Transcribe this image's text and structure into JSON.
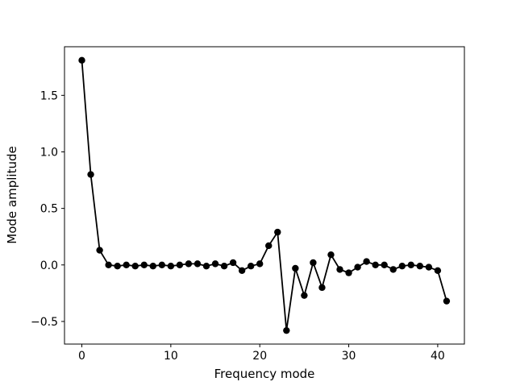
{
  "chart_data": {
    "type": "line",
    "title": "",
    "xlabel": "Frequency mode",
    "ylabel": "Mode amplitude",
    "xlim": [
      -1.95,
      43.0
    ],
    "ylim": [
      -0.7,
      1.93
    ],
    "xticks": [
      0,
      10,
      20,
      30,
      40
    ],
    "xtick_labels": [
      "0",
      "10",
      "20",
      "30",
      "40"
    ],
    "yticks": [
      -0.5,
      0.0,
      0.5,
      1.0,
      1.5
    ],
    "ytick_labels": [
      "−0.5",
      "0.0",
      "0.5",
      "1.0",
      "1.5"
    ],
    "grid": false,
    "legend": "none",
    "series": [
      {
        "color": "#000000",
        "marker": "circle",
        "x": [
          0,
          1,
          2,
          3,
          4,
          5,
          6,
          7,
          8,
          9,
          10,
          11,
          12,
          13,
          14,
          15,
          16,
          17,
          18,
          19,
          20,
          21,
          22,
          23,
          24,
          25,
          26,
          27,
          28,
          29,
          30,
          31,
          32,
          33,
          34,
          35,
          36,
          37,
          38,
          39,
          40,
          41
        ],
        "y": [
          1.81,
          0.8,
          0.13,
          0.0,
          -0.01,
          0.0,
          -0.01,
          0.0,
          -0.01,
          0.0,
          -0.01,
          0.0,
          0.01,
          0.01,
          -0.01,
          0.01,
          -0.01,
          0.02,
          -0.05,
          -0.01,
          0.01,
          0.17,
          0.29,
          -0.58,
          -0.03,
          -0.27,
          0.02,
          -0.2,
          0.09,
          -0.04,
          -0.07,
          -0.02,
          0.03,
          0.0,
          0.0,
          -0.04,
          -0.01,
          0.0,
          -0.01,
          -0.02,
          -0.05,
          -0.32
        ]
      }
    ]
  }
}
